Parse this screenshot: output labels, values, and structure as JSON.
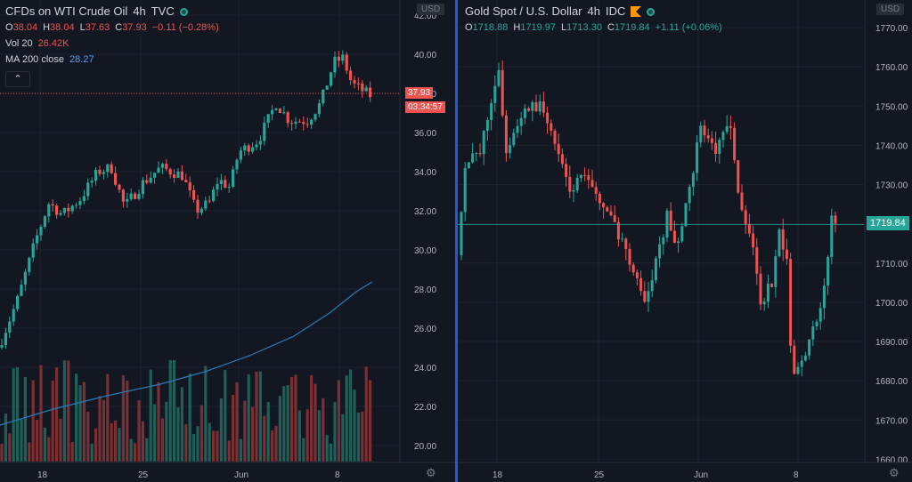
{
  "left": {
    "title": "CFDs on WTI Crude Oil",
    "interval": "4h",
    "exchange": "TVC",
    "ohlc": {
      "o_label": "O",
      "o": "38.04",
      "h_label": "H",
      "h": "38.04",
      "l_label": "L",
      "l": "37.63",
      "c_label": "C",
      "c": "37.93",
      "change": "−0.11 (−0.28%)"
    },
    "volume": {
      "label": "Vol 20",
      "value": "26.42K"
    },
    "ma": {
      "label": "MA 200 close",
      "value": "28.27"
    },
    "collapse_glyph": "⌃",
    "currency": "USD",
    "last_price": "37.93",
    "countdown": "03:34:57",
    "price_axis": [
      "42.00",
      "40.00",
      "38.00",
      "36.00",
      "34.00",
      "32.00",
      "30.00",
      "28.00",
      "26.00",
      "24.00",
      "22.00",
      "20.00"
    ],
    "time_axis": [
      "18",
      "25",
      "Jun",
      "8"
    ]
  },
  "right": {
    "title": "Gold Spot / U.S. Dollar",
    "interval": "4h",
    "exchange": "IDC",
    "ohlc": {
      "o_label": "O",
      "o": "1718.88",
      "h_label": "H",
      "h": "1719.97",
      "l_label": "L",
      "l": "1713.30",
      "c_label": "C",
      "c": "1719.84",
      "change": "+1.11 (+0.06%)"
    },
    "currency": "USD",
    "last_price": "1719.84",
    "price_axis": [
      "1770.00",
      "1760.00",
      "1750.00",
      "1740.00",
      "1730.00",
      "1720.00",
      "1710.00",
      "1700.00",
      "1690.00",
      "1680.00",
      "1670.00",
      "1660.00"
    ],
    "time_axis": [
      "18",
      "25",
      "Jun",
      "8"
    ]
  },
  "icons": {
    "gear": "settings-gear-icon",
    "live": "live-status-dot-icon",
    "flag": "flag-icon"
  },
  "colors": {
    "up": "#26a69a",
    "down": "#ef5350",
    "background": "#131722",
    "grid": "#1e222d",
    "ma": "#2a7bb8",
    "divider": "#2962ff"
  }
}
